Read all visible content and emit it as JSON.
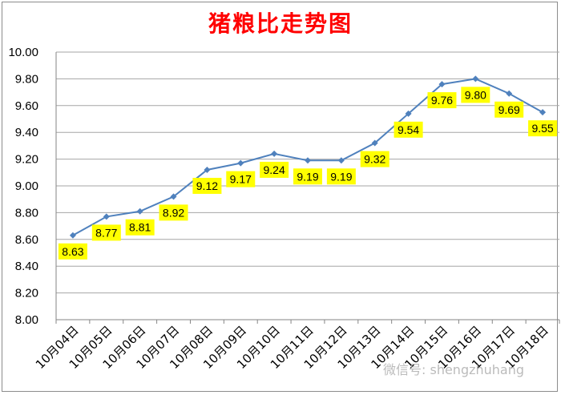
{
  "chart_data": {
    "type": "line",
    "title": "猪粮比走势图",
    "categories": [
      "10月04日",
      "10月05日",
      "10月06日",
      "10月07日",
      "10月08日",
      "10月09日",
      "10月10日",
      "10月11日",
      "10月12日",
      "10月13日",
      "10月14日",
      "10月15日",
      "10月16日",
      "10月17日",
      "10月18日"
    ],
    "series": [
      {
        "values": [
          8.63,
          8.77,
          8.81,
          8.92,
          9.12,
          9.17,
          9.24,
          9.19,
          9.19,
          9.32,
          9.54,
          9.76,
          9.8,
          9.69,
          9.55
        ]
      }
    ],
    "data_labels": [
      "8.63",
      "8.77",
      "8.81",
      "8.92",
      "9.12",
      "9.17",
      "9.24",
      "9.19",
      "9.19",
      "9.32",
      "9.54",
      "9.76",
      "9.80",
      "9.69",
      "9.55"
    ],
    "ylim": [
      8.0,
      10.0
    ],
    "yticks": [
      "8.00",
      "8.20",
      "8.40",
      "8.60",
      "8.80",
      "9.00",
      "9.20",
      "9.40",
      "9.60",
      "9.80",
      "10.00"
    ],
    "grid": true,
    "legend": "none",
    "colors": {
      "line": "#4f81bd",
      "marker": "#4f81bd",
      "label_bg": "#ffff00",
      "title": "#ff0000",
      "grid": "#a6a6a6"
    }
  },
  "watermark": "微信号: shengzhuhang"
}
